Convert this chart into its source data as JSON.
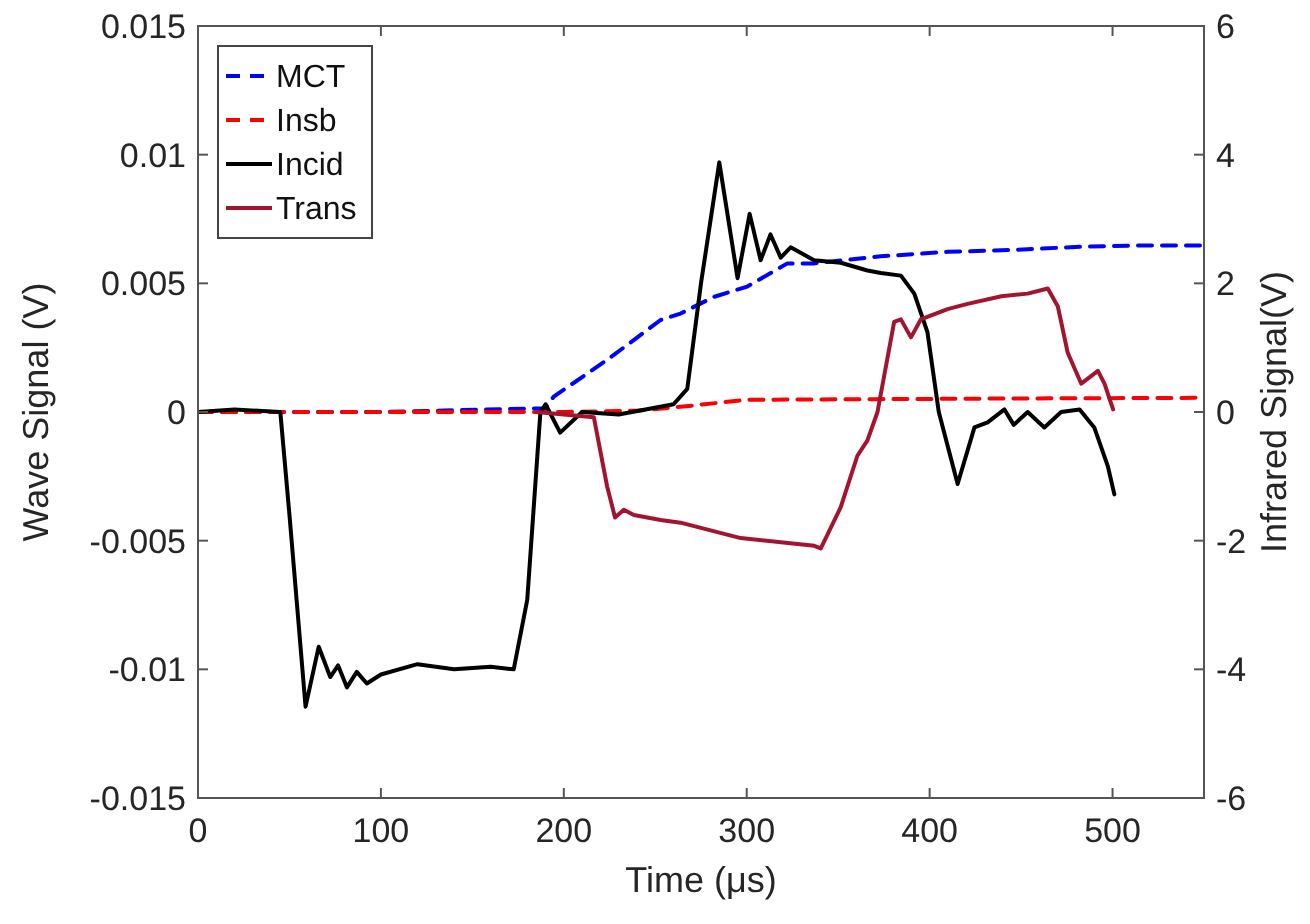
{
  "chart_data": {
    "type": "line",
    "xlabel": "Time (μs)",
    "ylabel": "Wave Signal (V)",
    "y2label": "Infrared Signal(V)",
    "xlim": [
      0,
      550
    ],
    "xticks": [
      0,
      100,
      200,
      300,
      400,
      500
    ],
    "ylim": [
      -0.015,
      0.015
    ],
    "yticks": [
      -0.015,
      -0.01,
      -0.005,
      0,
      0.005,
      0.01,
      0.015
    ],
    "y2lim": [
      -6,
      6
    ],
    "y2ticks": [
      -6,
      -4,
      -2,
      0,
      2,
      4,
      6
    ],
    "grid": false,
    "legend": "top left",
    "marker": "none",
    "series": [
      {
        "name": "MCT",
        "color": "#0000ff",
        "axis": "y2",
        "line_style": "dashed",
        "x": [
          0,
          100,
          190,
          194.5,
          223.7,
          252.9,
          263.8,
          282.1,
          300.3,
          322.2,
          336.8,
          373.3,
          409.8,
          446.3,
          482.9,
          519.3,
          548.5
        ],
        "values": [
          0,
          0,
          0.06,
          0.24,
          0.81,
          1.43,
          1.53,
          1.79,
          1.95,
          2.31,
          2.31,
          2.42,
          2.49,
          2.52,
          2.57,
          2.59,
          2.59
        ]
      },
      {
        "name": "Insb",
        "color": "#ff0000",
        "axis": "y2",
        "line_style": "dashed",
        "x": [
          0,
          100,
          200,
          240,
          263.8,
          300.3,
          373.3,
          446.3,
          548.5
        ],
        "values": [
          0,
          0,
          0,
          0.02,
          0.08,
          0.19,
          0.2,
          0.21,
          0.22
        ]
      },
      {
        "name": "Incid",
        "color": "#000000",
        "line_style": "solid",
        "x": [
          0,
          20,
          45,
          50,
          58.8,
          66,
          72.3,
          76.6,
          81.4,
          86.8,
          92.3,
          100,
          120,
          140,
          160,
          172.6,
          180,
          187.2,
          190,
          198,
          210,
          230,
          260,
          267.5,
          275,
          285,
          295,
          301.6,
          307.6,
          313,
          318.6,
          324,
          336.8,
          351.4,
          366,
          373.3,
          384.3,
          391.6,
          398.8,
          405,
          415.3,
          424.5,
          431.7,
          440.9,
          446,
          453.6,
          462.7,
          471.9,
          482,
          490,
          497.4,
          501
        ],
        "values": [
          0,
          0.0001,
          0,
          -0.004,
          -0.01145,
          -0.00912,
          -0.0103,
          -0.00985,
          -0.0107,
          -0.0101,
          -0.01055,
          -0.0102,
          -0.0098,
          -0.01,
          -0.0099,
          -0.01,
          -0.0073,
          0,
          0.0003,
          -0.0008,
          0,
          -0.0001,
          0.0003,
          0.0009,
          0.005,
          0.0097,
          0.0052,
          0.0077,
          0.0059,
          0.0069,
          0.006,
          0.0064,
          0.0059,
          0.0058,
          0.0055,
          0.0054,
          0.0053,
          0.0046,
          0.0031,
          0,
          -0.0028,
          -0.0006,
          -0.0004,
          0.0001,
          -0.0005,
          0,
          -0.0006,
          0,
          0.0001,
          -0.0006,
          -0.0021,
          -0.0032
        ]
      },
      {
        "name": "Trans",
        "color": "#a2142f",
        "line_style": "solid",
        "x": [
          185,
          216.4,
          223.7,
          228,
          232.8,
          238.3,
          252.9,
          263.8,
          296.7,
          336.9,
          340.5,
          351.4,
          360.5,
          366,
          371.5,
          380.6,
          384.3,
          389.8,
          395.2,
          409.8,
          420.7,
          439.3,
          453.6,
          464.6,
          470.1,
          475.5,
          482.9,
          492,
          495.6,
          500.3
        ],
        "values": [
          0,
          -0.0002,
          -0.0029,
          -0.0041,
          -0.0038,
          -0.004,
          -0.0042,
          -0.0043,
          -0.0049,
          -0.0052,
          -0.0053,
          -0.0037,
          -0.0017,
          -0.0011,
          0,
          0.0035,
          0.0036,
          0.0029,
          0.0036,
          0.004,
          0.0042,
          0.0045,
          0.0046,
          0.0048,
          0.0041,
          0.0023,
          0.0011,
          0.0016,
          0.0011,
          0.0001
        ]
      }
    ]
  }
}
